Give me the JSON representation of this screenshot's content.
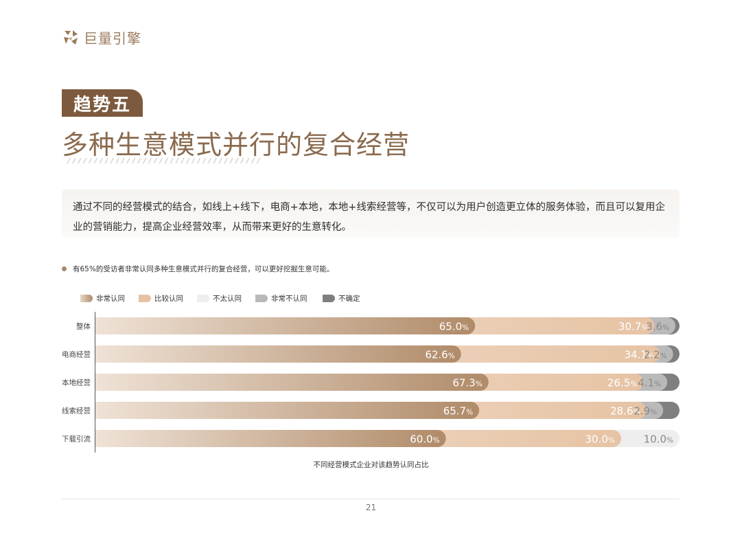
{
  "brand": {
    "logo_text": "巨量引擎"
  },
  "header": {
    "trend_tag": "趋势五",
    "title": "多种生意模式并行的复合经营"
  },
  "intro": {
    "text": "通过不同的经营模式的结合，如线上+线下，电商+本地，本地+线索经营等，不仅可以为用户创造更立体的服务体验，而且可以复用企业的营销能力，提高企业经营效率，从而带来更好的生意转化。"
  },
  "bullet": {
    "text": "有65%的受访者非常认同多种生意模式并行的复合经营，可以更好挖掘生意可能。"
  },
  "colors": {
    "brand": "#7d5a3e",
    "title": "#8a6a4e",
    "series": [
      "#b08b69",
      "#e6c3a4",
      "#eeeeee",
      "#b9b9b9",
      "#7f7f7f"
    ]
  },
  "chart_data": {
    "type": "bar",
    "orientation": "horizontal",
    "stacked": true,
    "categories": [
      "整体",
      "电商经营",
      "本地经营",
      "线索经营",
      "下载引流"
    ],
    "series": [
      {
        "name": "非常认同",
        "values": [
          65.0,
          62.6,
          67.3,
          65.7,
          60.0
        ]
      },
      {
        "name": "比较认同",
        "values": [
          30.7,
          34.1,
          26.5,
          28.6,
          30.0
        ]
      },
      {
        "name": "不太认同",
        "values": [
          0,
          0,
          0,
          0,
          10.0
        ]
      },
      {
        "name": "非常不认同",
        "values": [
          3.6,
          2.2,
          4.1,
          2.9,
          0
        ]
      },
      {
        "name": "不确定",
        "values": [
          0.7,
          1.1,
          2.1,
          2.8,
          0
        ]
      }
    ],
    "labels": [
      [
        "65.0",
        "30.7",
        null,
        "3.6",
        null
      ],
      [
        "62.6",
        "34.1",
        null,
        "2.2",
        null
      ],
      [
        "67.3",
        "26.5",
        null,
        "4.1",
        null
      ],
      [
        "65.7",
        "28.6",
        null,
        "2.9",
        null
      ],
      [
        "60.0",
        "30.0",
        "10.0",
        null,
        null
      ]
    ],
    "unit": "%",
    "xlim": [
      0,
      100
    ],
    "caption": "不同经营模式企业对该趋势认同占比",
    "legend_position": "top-left"
  },
  "footer": {
    "page_number": "21"
  }
}
